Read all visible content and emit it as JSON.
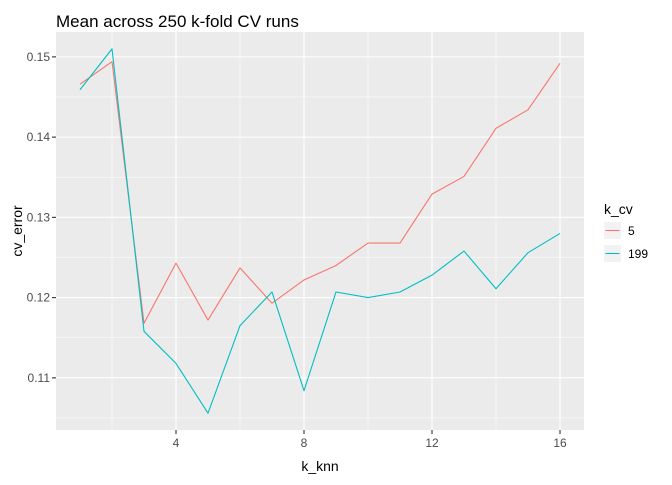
{
  "chart_data": {
    "type": "line",
    "title": "Mean across 250 k-fold CV runs",
    "xlabel": "k_knn",
    "ylabel": "cv_error",
    "xlim": [
      0.25,
      16.75
    ],
    "ylim": [
      0.1035,
      0.1531
    ],
    "x_ticks": [
      4,
      8,
      12,
      16
    ],
    "x_tick_labels": [
      "4",
      "8",
      "12",
      "16"
    ],
    "y_ticks": [
      0.11,
      0.12,
      0.13,
      0.14,
      0.15
    ],
    "y_tick_labels": [
      "0.11",
      "0.12",
      "0.13",
      "0.14",
      "0.15"
    ],
    "grid": true,
    "legend": {
      "title": "k_cv",
      "placement": "right"
    },
    "x": [
      1,
      2,
      3,
      4,
      5,
      6,
      7,
      8,
      9,
      10,
      11,
      12,
      13,
      14,
      15,
      16
    ],
    "series": [
      {
        "name": "5",
        "color": "#F8766D",
        "values": [
          0.1466,
          0.1494,
          0.1168,
          0.1243,
          0.1172,
          0.1237,
          0.1193,
          0.1222,
          0.124,
          0.1268,
          0.1268,
          0.1329,
          0.1351,
          0.1411,
          0.1434,
          0.1492
        ]
      },
      {
        "name": "199",
        "color": "#00BFC4",
        "values": [
          0.1459,
          0.151,
          0.1158,
          0.1118,
          0.1056,
          0.1165,
          0.1207,
          0.1084,
          0.1207,
          0.12,
          0.1207,
          0.1228,
          0.1258,
          0.1211,
          0.1256,
          0.128
        ]
      }
    ]
  }
}
